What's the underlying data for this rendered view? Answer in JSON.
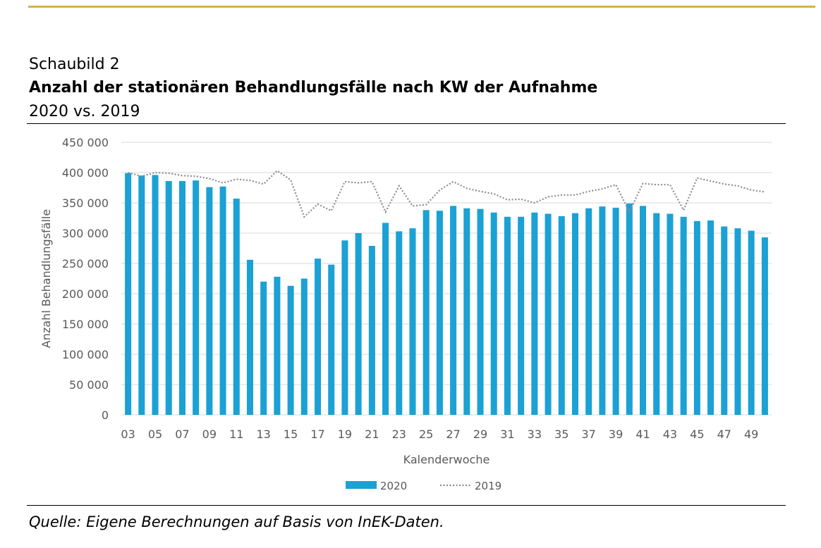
{
  "header": {
    "figure_label": "Schaubild 2",
    "title": "Anzahl der stationären Behandlungsfälle nach KW der Aufnahme",
    "subtitle": "2020 vs. 2019"
  },
  "footer": {
    "source": "Quelle: Eigene Berechnungen auf Basis von InEK-Daten."
  },
  "colors": {
    "accent_rule": "#d4b24a",
    "bar_2020": "#1ba1d4",
    "line_2019": "#8c8c8c",
    "grid": "#d9d9d9"
  },
  "chart_data": {
    "type": "bar",
    "xlabel": "Kalenderwoche",
    "ylabel": "Anzahl Behandlungsfälle",
    "ylim": [
      0,
      450000
    ],
    "yticks": [
      0,
      50000,
      100000,
      150000,
      200000,
      250000,
      300000,
      350000,
      400000,
      450000
    ],
    "ytick_labels": [
      "0",
      "50 000",
      "100 000",
      "150 000",
      "200 000",
      "250 000",
      "300 000",
      "350 000",
      "400 000",
      "450 000"
    ],
    "grid": true,
    "legend_position": "bottom",
    "categories": [
      "03",
      "04",
      "05",
      "06",
      "07",
      "08",
      "09",
      "10",
      "11",
      "12",
      "13",
      "14",
      "15",
      "16",
      "17",
      "18",
      "19",
      "20",
      "21",
      "22",
      "23",
      "24",
      "25",
      "26",
      "27",
      "28",
      "29",
      "30",
      "31",
      "32",
      "33",
      "34",
      "35",
      "36",
      "37",
      "38",
      "39",
      "40",
      "41",
      "42",
      "43",
      "44",
      "45",
      "46",
      "47",
      "48",
      "49",
      "50"
    ],
    "xtick_labels": [
      "03",
      "05",
      "07",
      "09",
      "11",
      "13",
      "15",
      "17",
      "19",
      "21",
      "23",
      "25",
      "27",
      "29",
      "31",
      "33",
      "35",
      "37",
      "39",
      "41",
      "43",
      "45",
      "47",
      "49"
    ],
    "series": [
      {
        "name": "2020",
        "type": "bar",
        "values": [
          399000,
          395000,
          396000,
          386000,
          386000,
          387000,
          376000,
          377000,
          357000,
          256000,
          220000,
          228000,
          213000,
          225000,
          258000,
          248000,
          288000,
          300000,
          279000,
          317000,
          303000,
          308000,
          338000,
          337000,
          345000,
          341000,
          340000,
          334000,
          327000,
          327000,
          334000,
          332000,
          328000,
          333000,
          341000,
          344000,
          342000,
          349000,
          345000,
          333000,
          332000,
          327000,
          320000,
          321000,
          311000,
          308000,
          304000,
          293000
        ]
      },
      {
        "name": "2019",
        "type": "line",
        "values": [
          400000,
          394000,
          400000,
          399000,
          395000,
          394000,
          390000,
          383000,
          389000,
          387000,
          381000,
          403000,
          388000,
          327000,
          348000,
          337000,
          385000,
          383000,
          385000,
          335000,
          378000,
          345000,
          347000,
          371000,
          385000,
          374000,
          369000,
          365000,
          355000,
          356000,
          350000,
          360000,
          363000,
          363000,
          369000,
          373000,
          380000,
          335000,
          382000,
          380000,
          380000,
          338000,
          391000,
          386000,
          381000,
          378000,
          371000,
          368000
        ]
      }
    ]
  }
}
